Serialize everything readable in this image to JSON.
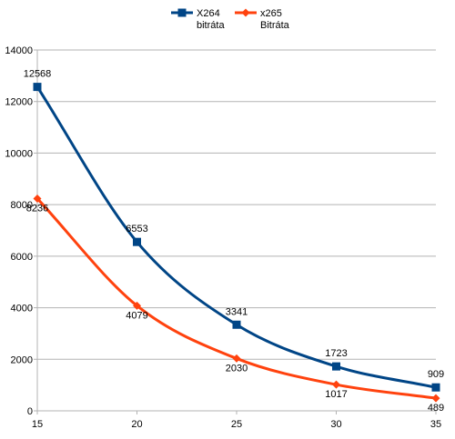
{
  "chart_data": {
    "type": "line",
    "title": "",
    "xlabel": "",
    "ylabel": "",
    "x": [
      15,
      20,
      25,
      30,
      35
    ],
    "xlim": [
      15,
      35
    ],
    "ylim": [
      0,
      14000
    ],
    "x_ticks": [
      "15",
      "20",
      "25",
      "30",
      "35"
    ],
    "y_ticks": [
      "0",
      "2000",
      "4000",
      "6000",
      "8000",
      "10000",
      "12000",
      "14000"
    ],
    "grid": "horizontal",
    "legend_position": "top-center",
    "series": [
      {
        "name": "X264 bitráta",
        "legend_lines": [
          "X264",
          "bitráta"
        ],
        "values": [
          12568,
          6553,
          3341,
          1723,
          909
        ],
        "labels": [
          "12568",
          "6553",
          "3341",
          "1723",
          "909"
        ],
        "color": "#004586",
        "marker": "square"
      },
      {
        "name": "x265 Bitráta",
        "legend_lines": [
          "x265",
          "Bitráta"
        ],
        "values": [
          8236,
          4079,
          2030,
          1017,
          489
        ],
        "labels": [
          "8236",
          "4079",
          "2030",
          "1017",
          "489"
        ],
        "color": "#ff420e",
        "marker": "diamond"
      }
    ]
  }
}
